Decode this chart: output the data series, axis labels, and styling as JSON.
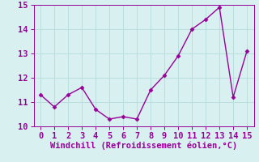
{
  "x": [
    0,
    1,
    2,
    3,
    4,
    5,
    6,
    7,
    8,
    9,
    10,
    11,
    12,
    13,
    14,
    15
  ],
  "y": [
    11.3,
    10.8,
    11.3,
    11.6,
    10.7,
    10.3,
    10.4,
    10.3,
    11.5,
    12.1,
    12.9,
    14.0,
    14.4,
    14.9,
    11.2,
    13.1
  ],
  "line_color": "#990099",
  "marker": "D",
  "marker_size": 2.5,
  "line_width": 1.0,
  "xlabel": "Windchill (Refroidissement éolien,°C)",
  "xlabel_color": "#990099",
  "xlabel_fontsize": 7.5,
  "xlim": [
    -0.5,
    15.5
  ],
  "ylim": [
    10.0,
    15.0
  ],
  "yticks": [
    10,
    11,
    12,
    13,
    14,
    15
  ],
  "xticks": [
    0,
    1,
    2,
    3,
    4,
    5,
    6,
    7,
    8,
    9,
    10,
    11,
    12,
    13,
    14,
    15
  ],
  "background_color": "#d8f0f0",
  "grid_color": "#b8dede",
  "tick_color": "#990099",
  "tick_fontsize": 7.5,
  "spine_color": "#990099"
}
